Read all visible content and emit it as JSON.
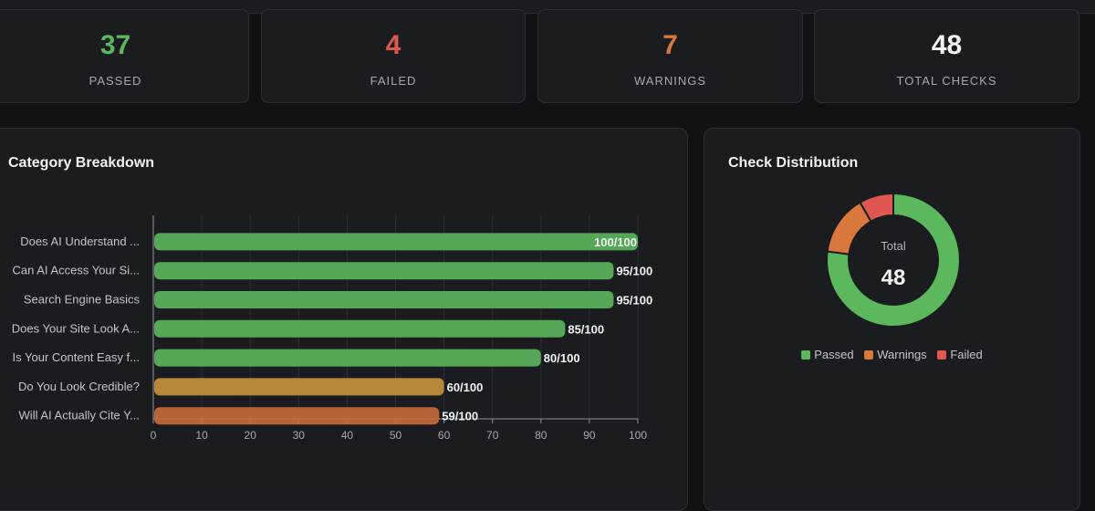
{
  "stats": [
    {
      "value": "37",
      "label": "PASSED",
      "color": "#5cb85c"
    },
    {
      "value": "4",
      "label": "FAILED",
      "color": "#e0574f"
    },
    {
      "value": "7",
      "label": "WARNINGS",
      "color": "#d9773d"
    },
    {
      "value": "48",
      "label": "TOTAL CHECKS",
      "color": "#f2f3f5"
    }
  ],
  "category": {
    "title": "Category Breakdown"
  },
  "distribution": {
    "title": "Check Distribution",
    "center_label": "Total",
    "center_value": "48",
    "legend": [
      {
        "label": "Passed",
        "color": "#5cb85c"
      },
      {
        "label": "Warnings",
        "color": "#d9773d"
      },
      {
        "label": "Failed",
        "color": "#e0574f"
      }
    ]
  },
  "chart_data": [
    {
      "type": "bar",
      "orientation": "horizontal",
      "title": "Category Breakdown",
      "categories": [
        "Does AI Understand ...",
        "Can AI Access Your Si...",
        "Search Engine Basics",
        "Does Your Site Look A...",
        "Is Your Content Easy f...",
        "Do You Look Credible?",
        "Will AI Actually Cite Y..."
      ],
      "values": [
        100,
        95,
        95,
        85,
        80,
        60,
        59
      ],
      "value_labels": [
        "100/100",
        "95/100",
        "95/100",
        "85/100",
        "80/100",
        "60/100",
        "59/100"
      ],
      "bar_colors": [
        "#5cb85c",
        "#5cb85c",
        "#5cb85c",
        "#5cb85c",
        "#5cb85c",
        "#c9953a",
        "#c96a3a"
      ],
      "xlim": [
        0,
        100
      ],
      "xticks": [
        "0",
        "10",
        "20",
        "30",
        "40",
        "50",
        "60",
        "70",
        "80",
        "90",
        "100"
      ],
      "grid": true
    },
    {
      "type": "pie",
      "variant": "donut",
      "title": "Check Distribution",
      "labels": [
        "Passed",
        "Warnings",
        "Failed"
      ],
      "values": [
        37,
        7,
        4
      ],
      "colors": [
        "#5cb85c",
        "#d9773d",
        "#e0574f"
      ]
    }
  ]
}
